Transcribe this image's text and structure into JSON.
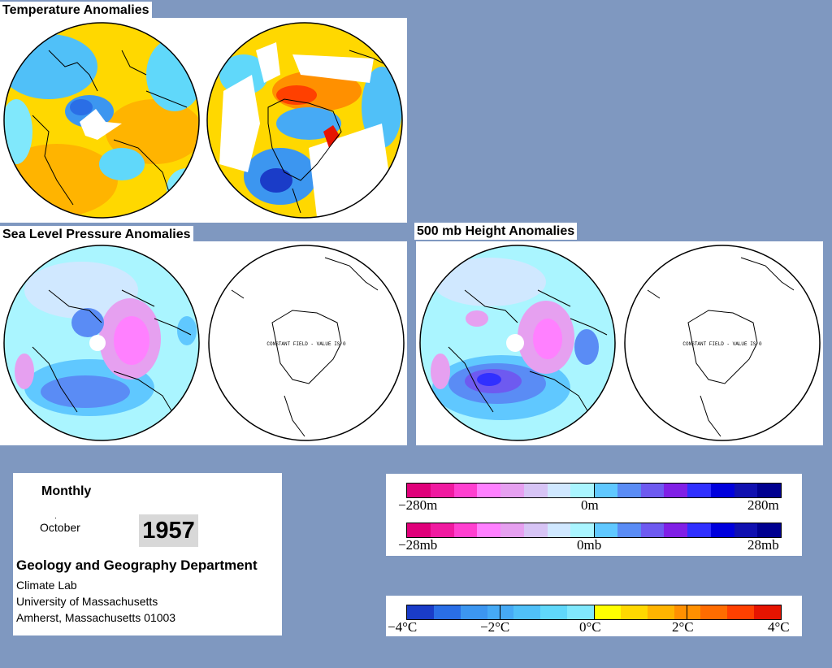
{
  "titles": {
    "temperature": "Temperature Anomalies",
    "slp": "Sea Level Pressure Anomalies",
    "height": "500 mb Height Anomalies"
  },
  "map_annotations": {
    "slp_south": "CONSTANT FIELD - VALUE IS 0",
    "height_south": "CONSTANT FIELD - VALUE IS 0"
  },
  "info": {
    "period": "Monthly",
    "month": "October",
    "dot": ".",
    "year": "1957",
    "department": "Geology and Geography Department",
    "address": [
      "Climate Lab",
      "University of Massachusetts",
      "Amherst, Massachusetts 01003"
    ]
  },
  "legend_height": {
    "labels": [
      "−280m",
      "0m",
      "280m"
    ],
    "colors": [
      "#e0007a",
      "#f01aa0",
      "#ff40d0",
      "#ff80ff",
      "#e6a0f0",
      "#d7c4f5",
      "#d0e8ff",
      "#aaf5ff",
      "#60c8ff",
      "#5a8cf5",
      "#6e5af0",
      "#8020e6",
      "#3030ff",
      "#0000dd",
      "#1010b0",
      "#000090"
    ]
  },
  "legend_slp": {
    "labels": [
      "−28mb",
      "0mb",
      "28mb"
    ],
    "colors": [
      "#e0007a",
      "#f01aa0",
      "#ff40d0",
      "#ff80ff",
      "#e6a0f0",
      "#d7c4f5",
      "#d0e8ff",
      "#aaf5ff",
      "#60c8ff",
      "#5a8cf5",
      "#6e5af0",
      "#8020e6",
      "#3030ff",
      "#0000dd",
      "#1010b0",
      "#000090"
    ]
  },
  "legend_temp": {
    "labels": [
      "−4°C",
      "−2°C",
      "0°C",
      "2°C",
      "4°C"
    ],
    "colors": [
      "#1a3cc8",
      "#2a6ee6",
      "#3c96f0",
      "#46aaf5",
      "#50c0f8",
      "#60d8fa",
      "#80e8fc",
      "#ffff00",
      "#ffd800",
      "#ffb400",
      "#ff9000",
      "#ff6c00",
      "#ff4000",
      "#e61400"
    ]
  }
}
